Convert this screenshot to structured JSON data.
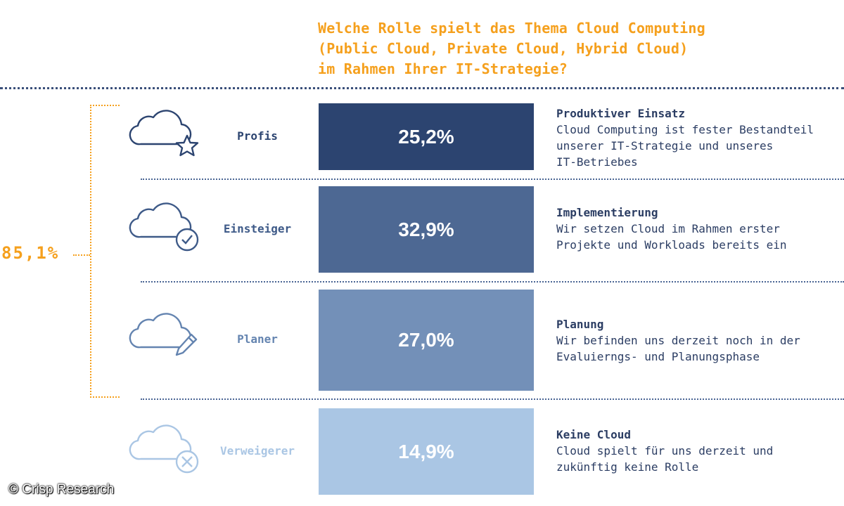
{
  "chart_data": {
    "type": "bar",
    "title_lines": [
      "Welche Rolle spielt das Thema Cloud Computing",
      "(Public Cloud, Private Cloud, Hybrid Cloud)",
      "im Rahmen Ihrer IT-Strategie?"
    ],
    "categories": [
      "Profis",
      "Einsteiger",
      "Planer",
      "Verweigerer"
    ],
    "values": [
      25.2,
      32.9,
      27.0,
      14.9
    ],
    "value_labels": [
      "25,2%",
      "32,9%",
      "27,0%",
      "14,9%"
    ],
    "bar_colors": [
      "#2c4470",
      "#4d6893",
      "#7390b8",
      "#aac6e4"
    ],
    "descriptions": [
      {
        "heading": "Produktiver Einsatz",
        "lines": [
          "Cloud Computing ist fester Bestandteil",
          "unserer IT-Strategie und unseres",
          "IT-Betriebes"
        ]
      },
      {
        "heading": "Implementierung",
        "lines": [
          "Wir setzen Cloud im Rahmen erster",
          "Projekte und Workloads bereits ein"
        ]
      },
      {
        "heading": "Planung",
        "lines": [
          "Wir befinden uns derzeit noch in der",
          "Evaluierngs- und Planungsphase"
        ]
      },
      {
        "heading": "Keine Cloud",
        "lines": [
          "Cloud spielt für uns derzeit und",
          "zukünftig keine Rolle"
        ]
      }
    ],
    "icons": [
      "cloud-star-icon",
      "cloud-check-icon",
      "cloud-pencil-icon",
      "cloud-x-icon"
    ],
    "bracket_total": "85,1%",
    "accent_color": "#f5a01d"
  },
  "credit": "© Crisp Research"
}
